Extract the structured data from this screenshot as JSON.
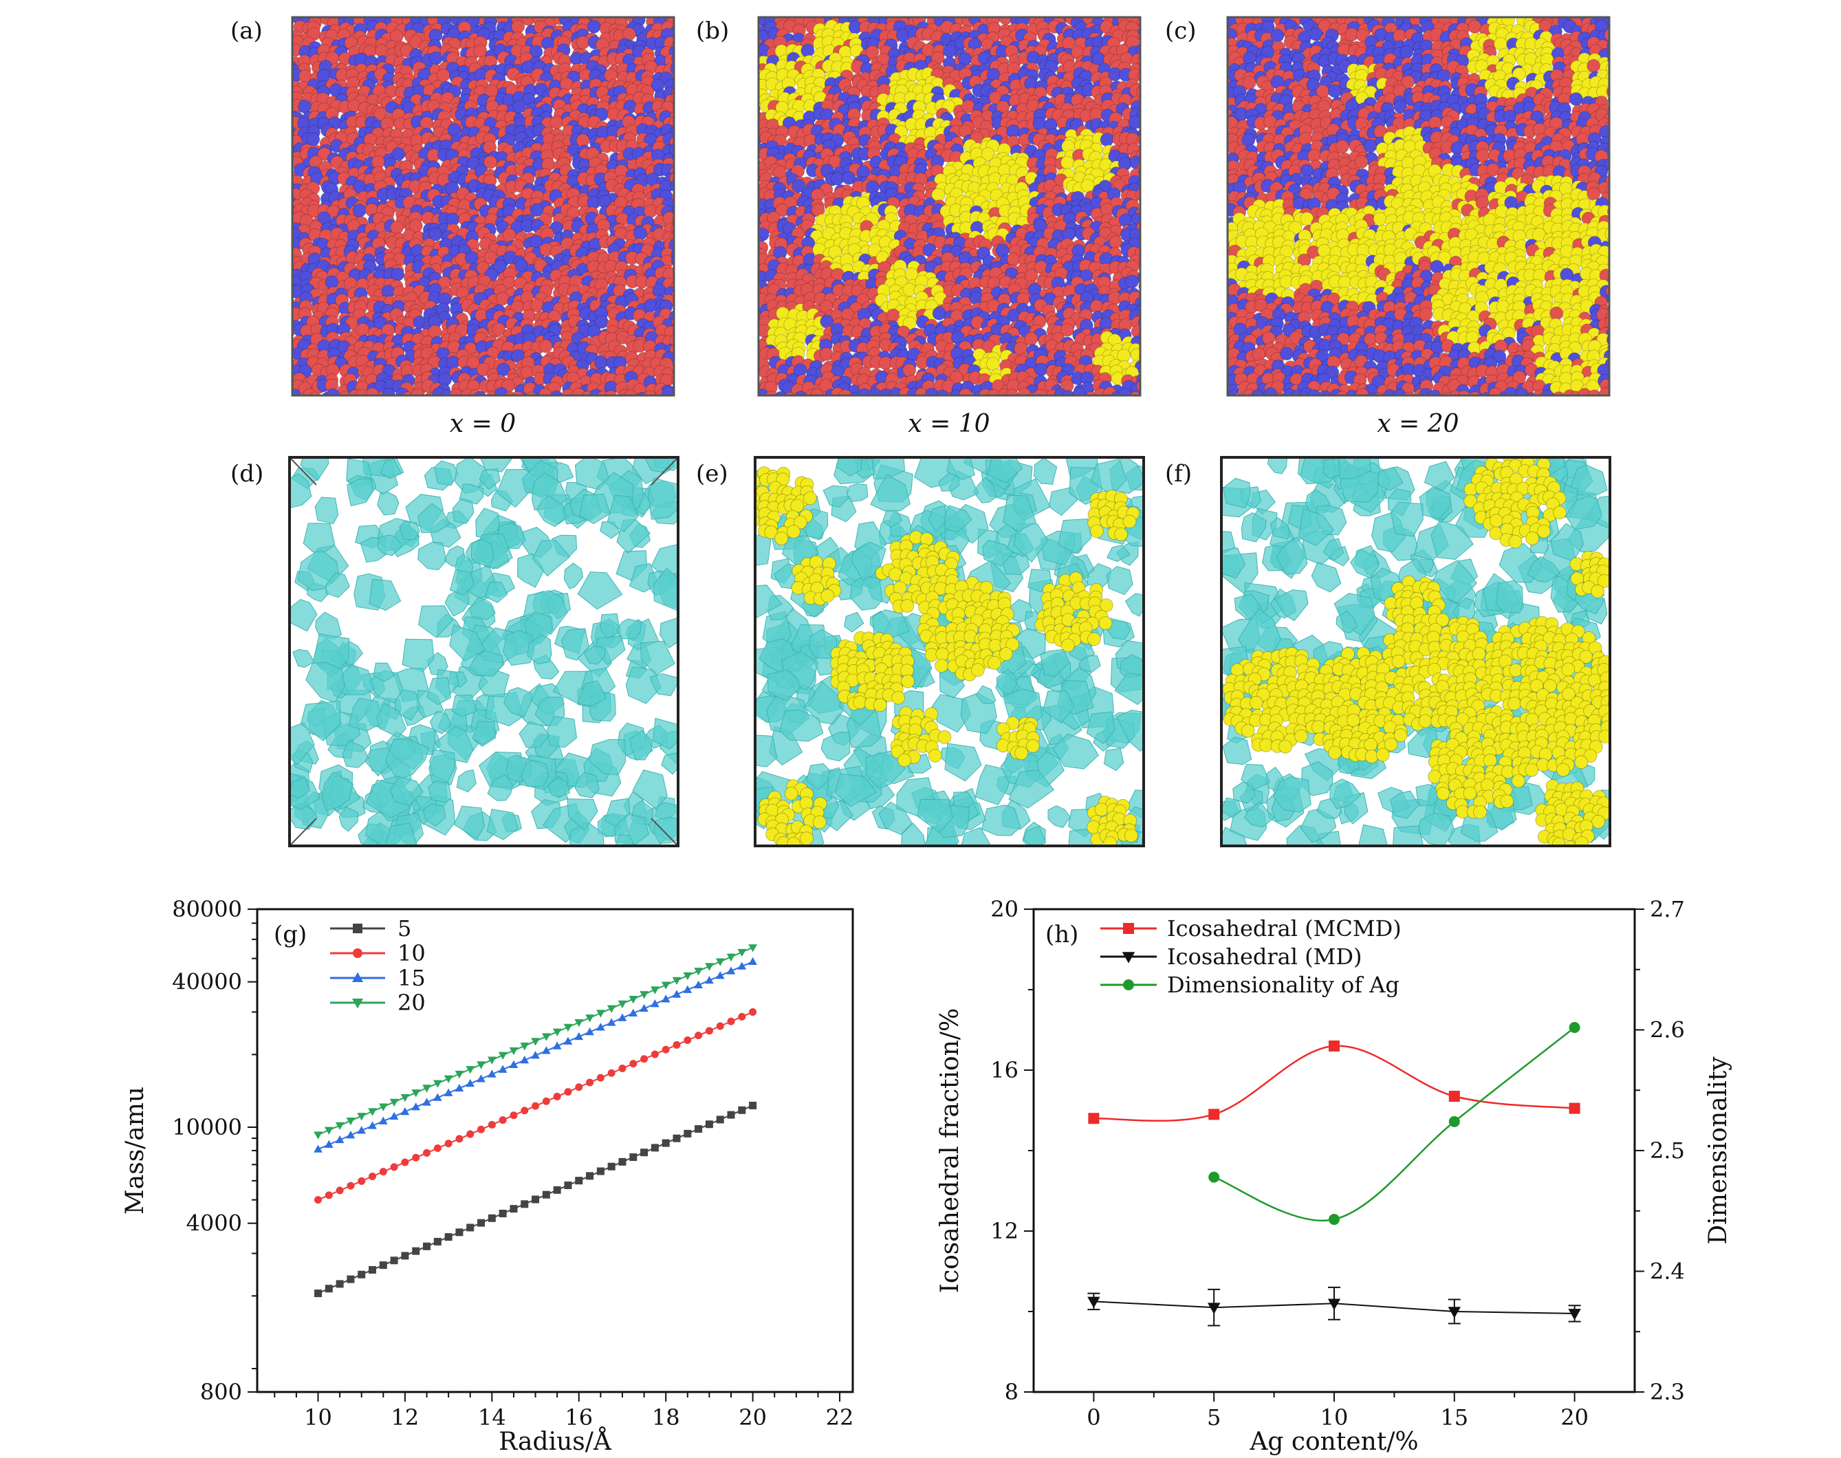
{
  "panels": [
    {
      "id": "a",
      "label": "(a)",
      "caption": "x = 0"
    },
    {
      "id": "b",
      "label": "(b)",
      "caption": "x = 10"
    },
    {
      "id": "c",
      "label": "(c)",
      "caption": "x = 20"
    },
    {
      "id": "d",
      "label": "(d)"
    },
    {
      "id": "e",
      "label": "(e)"
    },
    {
      "id": "f",
      "label": "(f)"
    }
  ],
  "colors": {
    "red_atom": "#e25250",
    "blue_atom": "#5050dc",
    "yellow_atom": "#f2ea1c",
    "cyan_cluster": "#57cfcd",
    "box_edge": "#555555",
    "series_5": "#444444",
    "series_10": "#ee3b3b",
    "series_15": "#2f6fe0",
    "series_20": "#2aa55a",
    "mcmd": "#ee2a2a",
    "md": "#111111",
    "dim": "#1e9a2a"
  },
  "chart_data": [
    {
      "id": "g",
      "label": "(g)",
      "type": "line",
      "yscale": "log",
      "xlabel": "Radius/Å",
      "ylabel": "Mass/amu",
      "xlim": [
        8.6,
        22.3
      ],
      "ylim": [
        800,
        80000
      ],
      "xticks": [
        10,
        12,
        14,
        16,
        18,
        20,
        22
      ],
      "yticks": [
        800,
        4000,
        10000,
        40000,
        80000
      ],
      "x_start": 10,
      "x_end": 20,
      "x_step": 0.25,
      "series": [
        {
          "name": "5",
          "marker": "square",
          "start": 2050,
          "end": 12300
        },
        {
          "name": "10",
          "marker": "circle",
          "start": 5000,
          "end": 30000
        },
        {
          "name": "15",
          "marker": "triangle-up",
          "start": 8100,
          "end": 48500
        },
        {
          "name": "20",
          "marker": "triangle-down",
          "start": 9300,
          "end": 55500
        }
      ],
      "legend": {
        "position": "top-left",
        "entries": [
          "5",
          "10",
          "15",
          "20"
        ]
      }
    },
    {
      "id": "h",
      "label": "(h)",
      "type": "line",
      "xlabel": "Ag content/%",
      "ylabel": "Icosahedral fraction/%",
      "y2label": "Dimensionality",
      "xlim": [
        -2.5,
        22.5
      ],
      "ylim": [
        8,
        20
      ],
      "y2lim": [
        2.3,
        2.7
      ],
      "xticks": [
        0,
        5,
        10,
        15,
        20
      ],
      "yticks": [
        8,
        12,
        16,
        20
      ],
      "y2ticks": [
        2.3,
        2.4,
        2.5,
        2.6,
        2.7
      ],
      "series": [
        {
          "name": "Icosahedral (MCMD)",
          "axis": "left",
          "marker": "square",
          "x": [
            0,
            5,
            10,
            15,
            20
          ],
          "y": [
            14.8,
            14.9,
            16.6,
            15.35,
            15.05
          ]
        },
        {
          "name": "Icosahedral (MD)",
          "axis": "left",
          "marker": "triangle-down",
          "x": [
            0,
            5,
            10,
            15,
            20
          ],
          "y": [
            10.25,
            10.1,
            10.2,
            10.0,
            9.95
          ],
          "err": [
            0.2,
            0.45,
            0.4,
            0.3,
            0.2
          ]
        },
        {
          "name": "Dimensionality of Ag",
          "axis": "right",
          "marker": "circle",
          "x": [
            5,
            10,
            15,
            20
          ],
          "y": [
            2.478,
            2.443,
            2.524,
            2.602
          ]
        }
      ],
      "legend": {
        "position": "top-left",
        "entries": [
          "Icosahedral (MCMD)",
          "Icosahedral (MD)",
          "Dimensionality of Ag"
        ]
      }
    }
  ]
}
